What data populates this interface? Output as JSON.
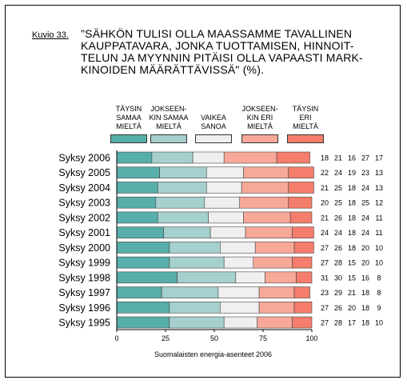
{
  "figure": {
    "label": "Kuvio 33.",
    "title_lines": [
      "\"SÄHKÖN TULISI OLLA MAASSAMME TAVALLINEN",
      "KAUPPATAVARA, JONKA TUOTTAMISEN, HINNOIT-",
      "TELUN JA MYYNNIN PITÄISI OLLA VAPAASTI MARK-",
      "KINOIDEN MÄÄRÄTTÄVISSÄ\" (%)."
    ],
    "source": "Suomalaisten energia-asenteet 2006"
  },
  "chart_data": {
    "type": "bar",
    "orientation": "horizontal",
    "stacked": true,
    "categories": [
      "Syksy 2006",
      "Syksy 2005",
      "Syksy 2004",
      "Syksy 2003",
      "Syksy 2002",
      "Syksy 2001",
      "Syksy 2000",
      "Syksy 1999",
      "Syksy 1998",
      "Syksy 1997",
      "Syksy 1996",
      "Syksy 1995"
    ],
    "series": [
      {
        "name": "TÄYSIN SAMAA MIELTÄ",
        "label_lines": [
          "TÄYSIN",
          "SAMAA",
          "MIELTÄ"
        ],
        "color": "#58aeaa",
        "values": [
          18,
          22,
          21,
          20,
          21,
          24,
          27,
          27,
          31,
          23,
          27,
          27
        ]
      },
      {
        "name": "JOKSEENKIN SAMAA MIELTÄ",
        "label_lines": [
          "JOKSEEN-",
          "KIN SAMAA",
          "MIELTÄ"
        ],
        "color": "#a5d0cd",
        "values": [
          21,
          24,
          25,
          25,
          26,
          24,
          26,
          28,
          30,
          29,
          26,
          28
        ]
      },
      {
        "name": "VAIKEA SANOA",
        "label_lines": [
          "VAIKEA",
          "SANOA"
        ],
        "color": "#efefef",
        "values": [
          16,
          19,
          18,
          18,
          18,
          18,
          18,
          15,
          15,
          21,
          20,
          17
        ]
      },
      {
        "name": "JOKSEENKIN ERI MIELTÄ",
        "label_lines": [
          "JOKSEEN-",
          "KIN ERI",
          "MIELTÄ"
        ],
        "color": "#f8a898",
        "values": [
          27,
          23,
          24,
          25,
          24,
          24,
          20,
          20,
          16,
          18,
          18,
          18
        ]
      },
      {
        "name": "TÄYSIN ERI MIELTÄ",
        "label_lines": [
          "TÄYSIN",
          "ERI",
          "MIELTÄ"
        ],
        "color": "#f47d6b",
        "values": [
          17,
          13,
          13,
          12,
          11,
          11,
          10,
          10,
          8,
          8,
          9,
          10
        ]
      }
    ],
    "xlim": [
      0,
      100
    ],
    "xticks": [
      0,
      25,
      50,
      75,
      100
    ],
    "grid": false,
    "legend": "top"
  }
}
